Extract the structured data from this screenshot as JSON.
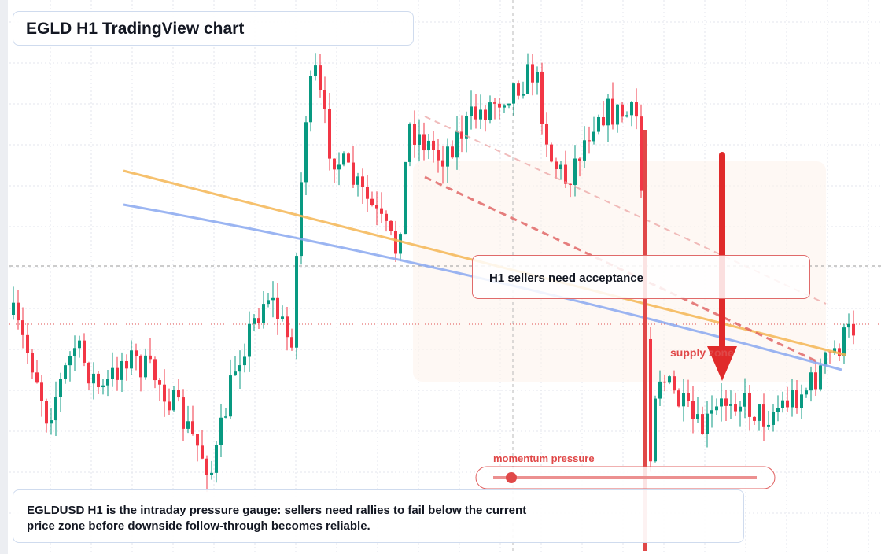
{
  "title": "EGLD H1 TradingView chart",
  "callout": "H1 sellers need acceptance",
  "zone_label": "supply zone",
  "gauge": {
    "label": "momentum pressure"
  },
  "caption": "EGLDUSD H1 is the intraday pressure gauge: sellers need rallies to fail below the current price zone before downside follow-through becomes reliable."
}
